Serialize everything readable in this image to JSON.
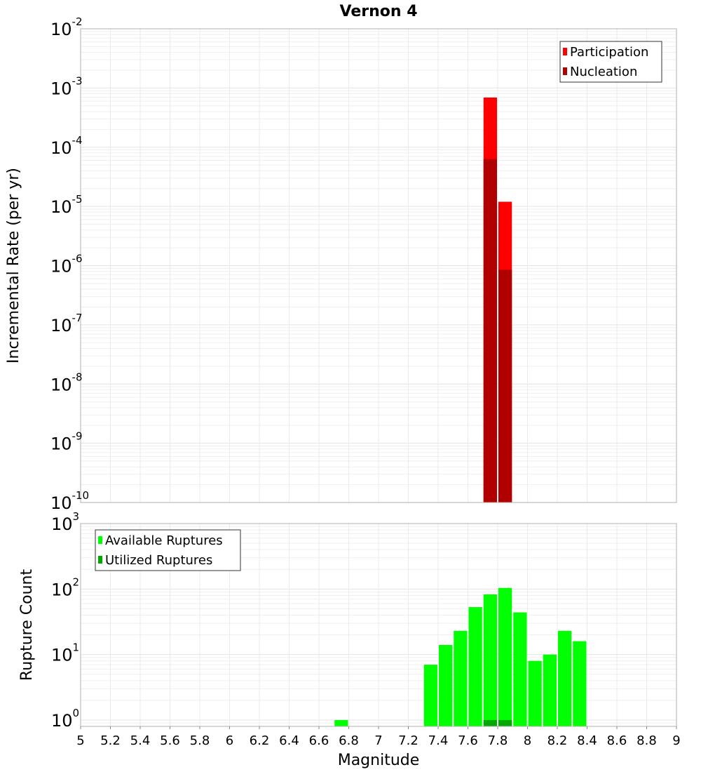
{
  "chart_data": [
    {
      "type": "bar",
      "title": "Vernon 4",
      "xlabel": "",
      "ylabel": "Incremental Rate (per yr)",
      "yscale": "log",
      "ylim": [
        1e-10,
        0.01
      ],
      "xlim": [
        5,
        9
      ],
      "bin_width": 0.1,
      "y_tick_exponents": [
        "-10",
        "-9",
        "-8",
        "-7",
        "-6",
        "-5",
        "-4",
        "-3",
        "-2"
      ],
      "legend": {
        "placement": "top-right",
        "entries": [
          "Participation",
          "Nucleation"
        ]
      },
      "series": [
        {
          "name": "Participation",
          "color": "#ff0000",
          "x": [
            7.75,
            7.85
          ],
          "values": [
            0.00069,
            1.2e-05
          ]
        },
        {
          "name": "Nucleation",
          "color": "#b00000",
          "x": [
            7.75,
            7.85
          ],
          "values": [
            6.3e-05,
            8.5e-07
          ]
        }
      ]
    },
    {
      "type": "bar",
      "title": "",
      "xlabel": "Magnitude",
      "ylabel": "Rupture Count",
      "yscale": "log",
      "ylim": [
        0.8,
        1000
      ],
      "xlim": [
        5,
        9
      ],
      "bin_width": 0.1,
      "y_tick_exponents": [
        "0",
        "1",
        "2",
        "3"
      ],
      "x_ticks": [
        "5",
        "5.2",
        "5.4",
        "5.6",
        "5.8",
        "6",
        "6.2",
        "6.4",
        "6.6",
        "6.8",
        "7",
        "7.2",
        "7.4",
        "7.6",
        "7.8",
        "8",
        "8.2",
        "8.4",
        "8.6",
        "8.8",
        "9"
      ],
      "legend": {
        "placement": "top-left",
        "entries": [
          "Available Ruptures",
          "Utilized Ruptures"
        ]
      },
      "series": [
        {
          "name": "Available Ruptures",
          "color": "#00ff00",
          "x": [
            6.75,
            7.35,
            7.45,
            7.55,
            7.65,
            7.75,
            7.85,
            7.95,
            8.05,
            8.15,
            8.25,
            8.35
          ],
          "values": [
            1,
            7,
            14,
            23,
            53,
            83,
            104,
            44,
            8,
            10,
            23,
            16
          ]
        },
        {
          "name": "Utilized Ruptures",
          "color": "#00a800",
          "x": [
            7.75,
            7.85
          ],
          "values": [
            1,
            1
          ]
        }
      ]
    }
  ]
}
